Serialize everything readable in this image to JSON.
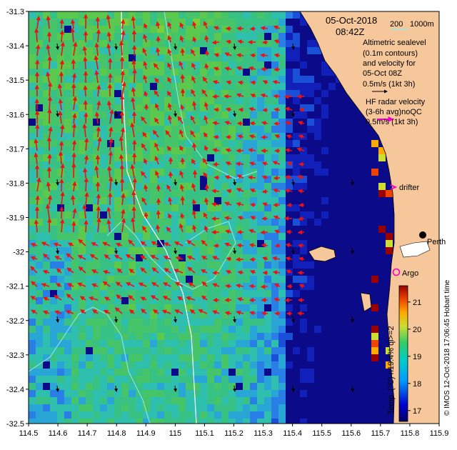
{
  "map": {
    "date": "05-Oct-2018",
    "time": "08:42Z",
    "depth_legend": {
      "a": "200",
      "b": "1000m"
    },
    "altimetry_note": [
      "Altimetric sealevel",
      "(0.1m contours)",
      "and velocity for",
      "05-Oct 08Z",
      "0.5m/s (1kt 3h)"
    ],
    "hf_note": [
      "HF radar velocity",
      "(3-6h avg)noQC",
      "0.5m/s (1kt 3h)"
    ],
    "drifter_label": "drifter",
    "argo_label": "Argo",
    "place_label": "Perth",
    "colorbar": {
      "label": "Temp. (°C) n19.4% ql>=2",
      "ticks": [
        "21",
        "20",
        "19",
        "18",
        "17"
      ],
      "values": [
        21,
        20,
        19,
        18,
        17
      ],
      "range": [
        16.6,
        21.6
      ]
    },
    "credit": "© IMOS 12-Oct-2018 17:06:45 Hobart time",
    "colors": {
      "land": "#f6c79a",
      "ocean_mid": "#35b87a",
      "ocean_cold": "#0a0a8c",
      "hf_arrow": "#ee1111",
      "hf_legend_arrow": "#ee00cc",
      "contour": "#9fe7e3",
      "argo": "#ee00cc"
    }
  },
  "chart_data": {
    "type": "heatmap",
    "title": "",
    "xlabel": "",
    "ylabel": "",
    "x_ticks": [
      "114.5",
      "114.6",
      "114.7",
      "114.8",
      "114.9",
      "115",
      "115.1",
      "115.2",
      "115.3",
      "115.4",
      "115.5",
      "115.6",
      "115.7",
      "115.8",
      "115.9"
    ],
    "y_ticks": [
      "-31.3",
      "-31.4",
      "-31.5",
      "-31.6",
      "-31.7",
      "-31.8",
      "-31.9",
      "-32",
      "-32.1",
      "-32.2",
      "-32.3",
      "-32.4",
      "-32.5"
    ],
    "xlim": [
      114.5,
      115.9
    ],
    "ylim": [
      -32.5,
      -31.3
    ]
  }
}
